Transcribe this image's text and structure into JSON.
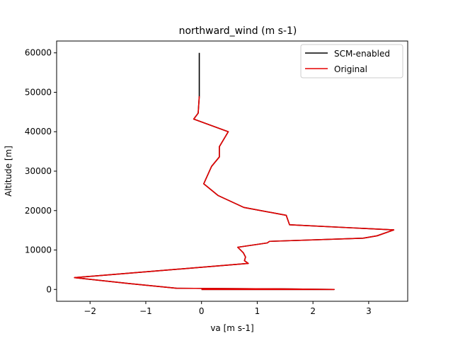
{
  "chart_data": {
    "type": "line",
    "title": "northward_wind (m s-1)",
    "xlabel": "va [m s-1]",
    "ylabel": "Altitude [m]",
    "xlim": [
      -2.6,
      3.7
    ],
    "ylim": [
      -3000,
      63000
    ],
    "xticks": [
      -2,
      -1,
      0,
      1,
      2,
      3
    ],
    "yticks": [
      0,
      10000,
      20000,
      30000,
      40000,
      50000,
      60000
    ],
    "grid": false,
    "legend": {
      "placement": "top-right"
    },
    "series": [
      {
        "name": "SCM-enabled",
        "color": "#000000",
        "points": [
          [
            0.0,
            0
          ],
          [
            2.38,
            0
          ],
          [
            1.4,
            150
          ],
          [
            -0.45,
            300
          ],
          [
            -1.3,
            1500
          ],
          [
            -2.28,
            3000
          ],
          [
            0.84,
            6600
          ],
          [
            0.77,
            7300
          ],
          [
            0.79,
            8200
          ],
          [
            0.75,
            9300
          ],
          [
            0.65,
            10700
          ],
          [
            1.18,
            11800
          ],
          [
            1.22,
            12200
          ],
          [
            2.9,
            13000
          ],
          [
            3.15,
            13600
          ],
          [
            3.45,
            15100
          ],
          [
            1.58,
            16400
          ],
          [
            1.52,
            18800
          ],
          [
            0.76,
            20800
          ],
          [
            0.3,
            23800
          ],
          [
            0.04,
            26800
          ],
          [
            0.18,
            31200
          ],
          [
            0.32,
            33600
          ],
          [
            0.32,
            36200
          ],
          [
            0.48,
            40000
          ],
          [
            -0.14,
            43200
          ],
          [
            -0.06,
            44700
          ],
          [
            -0.04,
            49000
          ],
          [
            -0.04,
            60000
          ]
        ]
      },
      {
        "name": "Original",
        "color": "#e50000",
        "points": [
          [
            0.0,
            0
          ],
          [
            2.38,
            0
          ],
          [
            1.4,
            150
          ],
          [
            -0.45,
            300
          ],
          [
            -1.3,
            1500
          ],
          [
            -2.28,
            3000
          ],
          [
            0.84,
            6600
          ],
          [
            0.77,
            7300
          ],
          [
            0.79,
            8200
          ],
          [
            0.75,
            9300
          ],
          [
            0.65,
            10700
          ],
          [
            1.18,
            11800
          ],
          [
            1.22,
            12200
          ],
          [
            2.9,
            13000
          ],
          [
            3.15,
            13600
          ],
          [
            3.45,
            15100
          ],
          [
            1.58,
            16400
          ],
          [
            1.52,
            18800
          ],
          [
            0.76,
            20800
          ],
          [
            0.3,
            23800
          ],
          [
            0.04,
            26800
          ],
          [
            0.18,
            31200
          ],
          [
            0.32,
            33600
          ],
          [
            0.32,
            36200
          ],
          [
            0.48,
            40000
          ],
          [
            -0.14,
            43200
          ],
          [
            -0.06,
            44700
          ],
          [
            -0.04,
            49000
          ]
        ]
      }
    ]
  }
}
